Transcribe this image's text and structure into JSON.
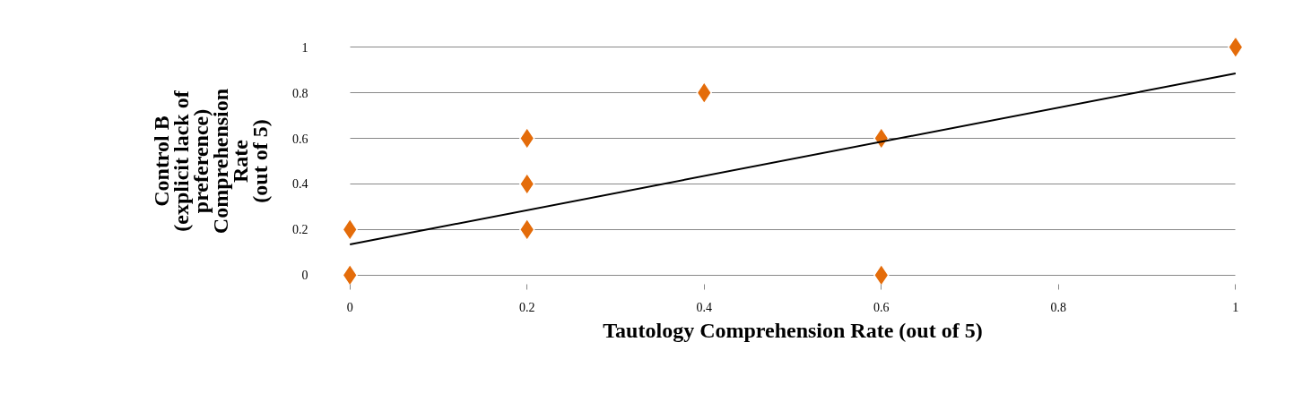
{
  "chart_data": {
    "type": "scatter",
    "xlabel": "Tautology Comprehension Rate (out of 5)",
    "ylabel": "Control B\n(explicit lack of\npreference)\nComprehension\nRate\n(out of 5)",
    "series": [
      {
        "type": "scatter",
        "color": "#e46c0a",
        "marker": "diamond",
        "x": [
          0,
          0,
          0.2,
          0.2,
          0.2,
          0.4,
          0.6,
          0.6,
          1
        ],
        "values": [
          0,
          0.2,
          0.2,
          0.4,
          0.6,
          0.8,
          0.6,
          0,
          1
        ]
      },
      {
        "type": "line",
        "color": "#000000",
        "line_style": "solid",
        "x": [
          0,
          1
        ],
        "values": [
          0.135,
          0.885
        ]
      }
    ],
    "xlim": [
      0,
      1
    ],
    "ylim": [
      0,
      1
    ],
    "xticks": [
      0,
      0.2,
      0.4,
      0.6,
      0.8,
      1
    ],
    "yticks": [
      0,
      0.2,
      0.4,
      0.6,
      0.8,
      1
    ],
    "grid": "y"
  }
}
